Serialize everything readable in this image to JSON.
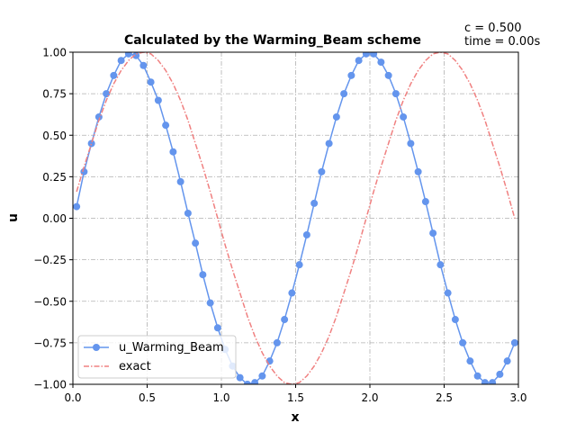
{
  "chart_data": {
    "type": "line",
    "title": "Calculated by the Warming_Beam scheme",
    "annotation_lines": [
      "c = 0.500",
      "time = 0.00s"
    ],
    "xlabel": "x",
    "ylabel": "u",
    "xlim": [
      0,
      3
    ],
    "ylim": [
      -1,
      1
    ],
    "xticks": [
      0,
      0.5,
      1,
      1.5,
      2,
      2.5,
      3
    ],
    "xtick_labels": [
      "0.0",
      "0.5",
      "1.0",
      "1.5",
      "2.0",
      "2.5",
      "3.0"
    ],
    "yticks": [
      -1,
      -0.75,
      -0.5,
      -0.25,
      0,
      0.25,
      0.5,
      0.75,
      1
    ],
    "ytick_labels": [
      "−1.00",
      "−0.75",
      "−0.50",
      "−0.25",
      "0.00",
      "0.25",
      "0.50",
      "0.75",
      "1.00"
    ],
    "grid": true,
    "legend_position": "lower-left",
    "sample": {
      "x_start": 0.025,
      "dx": 0.05,
      "count": 60
    },
    "series": [
      {
        "name": "u_Warming_Beam",
        "color": "#6495ed",
        "style": "solid line with circle markers",
        "x_start": 0.025,
        "dx": 0.05,
        "y": [
          0.07,
          0.28,
          0.45,
          0.61,
          0.75,
          0.86,
          0.95,
          0.99,
          0.98,
          0.92,
          0.82,
          0.71,
          0.56,
          0.4,
          0.22,
          0.03,
          -0.15,
          -0.34,
          -0.51,
          -0.66,
          -0.79,
          -0.89,
          -0.96,
          -1.0,
          -0.99,
          -0.95,
          -0.86,
          -0.75,
          -0.61,
          -0.45,
          -0.28,
          -0.1,
          0.09,
          0.28,
          0.45,
          0.61,
          0.75,
          0.86,
          0.95,
          0.99,
          0.99,
          0.94,
          0.86,
          0.75,
          0.61,
          0.45,
          0.28,
          0.1,
          -0.09,
          -0.28,
          -0.45,
          -0.61,
          -0.75,
          -0.86,
          -0.95,
          -0.99,
          -0.99,
          -0.94,
          -0.86,
          -0.75
        ]
      },
      {
        "name": "exact",
        "color": "#f08080",
        "style": "dash-dot line",
        "x_start": 0.025,
        "dx": 0.05,
        "y": [
          0.16,
          0.31,
          0.45,
          0.59,
          0.71,
          0.81,
          0.89,
          0.95,
          0.99,
          1.0,
          0.99,
          0.95,
          0.89,
          0.81,
          0.71,
          0.59,
          0.45,
          0.31,
          0.16,
          0.0,
          -0.16,
          -0.31,
          -0.45,
          -0.59,
          -0.71,
          -0.81,
          -0.89,
          -0.95,
          -0.99,
          -1.0,
          -0.99,
          -0.95,
          -0.89,
          -0.81,
          -0.71,
          -0.59,
          -0.45,
          -0.31,
          -0.16,
          0.0,
          0.16,
          0.31,
          0.45,
          0.59,
          0.71,
          0.81,
          0.89,
          0.95,
          0.99,
          1.0,
          0.99,
          0.95,
          0.89,
          0.81,
          0.71,
          0.59,
          0.45,
          0.31,
          0.16,
          0.0
        ]
      }
    ]
  }
}
